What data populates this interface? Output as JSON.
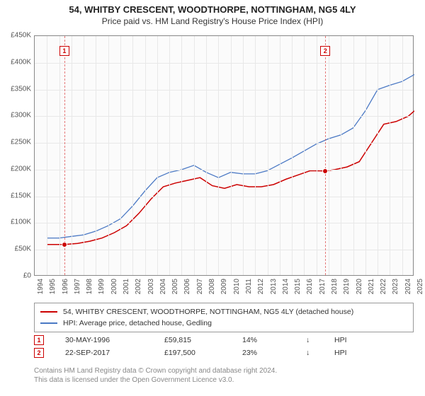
{
  "title": {
    "line1": "54, WHITBY CRESCENT, WOODTHORPE, NOTTINGHAM, NG5 4LY",
    "line2": "Price paid vs. HM Land Registry's House Price Index (HPI)"
  },
  "chart": {
    "type": "line",
    "background_color": "#fbfbfb",
    "grid_color": "#e8e8e8",
    "border_color": "#888888",
    "axis_label_fontsize": 10,
    "axis_label_color": "#555555",
    "x_start": 1994,
    "x_end": 2025,
    "x_ticks": [
      1994,
      1995,
      1996,
      1997,
      1998,
      1999,
      2000,
      2001,
      2002,
      2003,
      2004,
      2005,
      2006,
      2007,
      2008,
      2009,
      2010,
      2011,
      2012,
      2013,
      2014,
      2015,
      2016,
      2017,
      2018,
      2019,
      2020,
      2021,
      2022,
      2023,
      2024,
      2025
    ],
    "y_min": 0,
    "y_max": 450000,
    "y_tick_step": 50000,
    "y_tick_labels": [
      "£0",
      "£50K",
      "£100K",
      "£150K",
      "£200K",
      "£250K",
      "£300K",
      "£350K",
      "£400K",
      "£450K"
    ],
    "marker_line_color": "#d44444",
    "series": [
      {
        "name": "property",
        "label": "54, WHITBY CRESCENT, WOODTHORPE, NOTTINGHAM, NG5 4LY (detached house)",
        "color": "#cc0000",
        "line_width": 1.5,
        "data": [
          [
            1995.0,
            60000
          ],
          [
            1996.42,
            59815
          ],
          [
            1997.5,
            62000
          ],
          [
            1998.5,
            66000
          ],
          [
            1999.5,
            72000
          ],
          [
            2000.5,
            82000
          ],
          [
            2001.5,
            95000
          ],
          [
            2002.5,
            118000
          ],
          [
            2003.5,
            145000
          ],
          [
            2004.5,
            168000
          ],
          [
            2005.5,
            175000
          ],
          [
            2006.5,
            180000
          ],
          [
            2007.5,
            185000
          ],
          [
            2008.5,
            170000
          ],
          [
            2009.5,
            165000
          ],
          [
            2010.5,
            172000
          ],
          [
            2011.5,
            168000
          ],
          [
            2012.5,
            168000
          ],
          [
            2013.5,
            172000
          ],
          [
            2014.5,
            182000
          ],
          [
            2015.5,
            190000
          ],
          [
            2016.5,
            198000
          ],
          [
            2017.73,
            197500
          ],
          [
            2018.5,
            200000
          ],
          [
            2019.5,
            205000
          ],
          [
            2020.5,
            215000
          ],
          [
            2021.5,
            250000
          ],
          [
            2022.5,
            285000
          ],
          [
            2023.5,
            290000
          ],
          [
            2024.5,
            300000
          ],
          [
            2025.0,
            310000
          ]
        ]
      },
      {
        "name": "hpi",
        "label": "HPI: Average price, detached house, Gedling",
        "color": "#4a78c4",
        "line_width": 1.3,
        "data": [
          [
            1995.0,
            72000
          ],
          [
            1996.0,
            72000
          ],
          [
            1997.0,
            75000
          ],
          [
            1998.0,
            78000
          ],
          [
            1999.0,
            85000
          ],
          [
            2000.0,
            95000
          ],
          [
            2001.0,
            108000
          ],
          [
            2002.0,
            132000
          ],
          [
            2003.0,
            160000
          ],
          [
            2004.0,
            185000
          ],
          [
            2005.0,
            195000
          ],
          [
            2006.0,
            200000
          ],
          [
            2007.0,
            208000
          ],
          [
            2008.0,
            195000
          ],
          [
            2009.0,
            185000
          ],
          [
            2010.0,
            195000
          ],
          [
            2011.0,
            192000
          ],
          [
            2012.0,
            192000
          ],
          [
            2013.0,
            198000
          ],
          [
            2014.0,
            210000
          ],
          [
            2015.0,
            222000
          ],
          [
            2016.0,
            235000
          ],
          [
            2017.0,
            248000
          ],
          [
            2018.0,
            258000
          ],
          [
            2019.0,
            265000
          ],
          [
            2020.0,
            278000
          ],
          [
            2021.0,
            310000
          ],
          [
            2022.0,
            350000
          ],
          [
            2023.0,
            358000
          ],
          [
            2024.0,
            365000
          ],
          [
            2025.0,
            378000
          ]
        ]
      }
    ],
    "sale_markers": [
      {
        "n": "1",
        "year": 1996.42,
        "price": 59815
      },
      {
        "n": "2",
        "year": 2017.73,
        "price": 197500
      }
    ],
    "marker_box_top_offset": 14
  },
  "legend": {
    "border_color": "#999999",
    "fontsize": 10.5
  },
  "sales": [
    {
      "n": "1",
      "date": "30-MAY-1996",
      "price": "£59,815",
      "diff": "14%",
      "arrow": "↓",
      "ref": "HPI"
    },
    {
      "n": "2",
      "date": "22-SEP-2017",
      "price": "£197,500",
      "diff": "23%",
      "arrow": "↓",
      "ref": "HPI"
    }
  ],
  "footer": {
    "line1": "Contains HM Land Registry data © Crown copyright and database right 2024.",
    "line2": "This data is licensed under the Open Government Licence v3.0."
  }
}
